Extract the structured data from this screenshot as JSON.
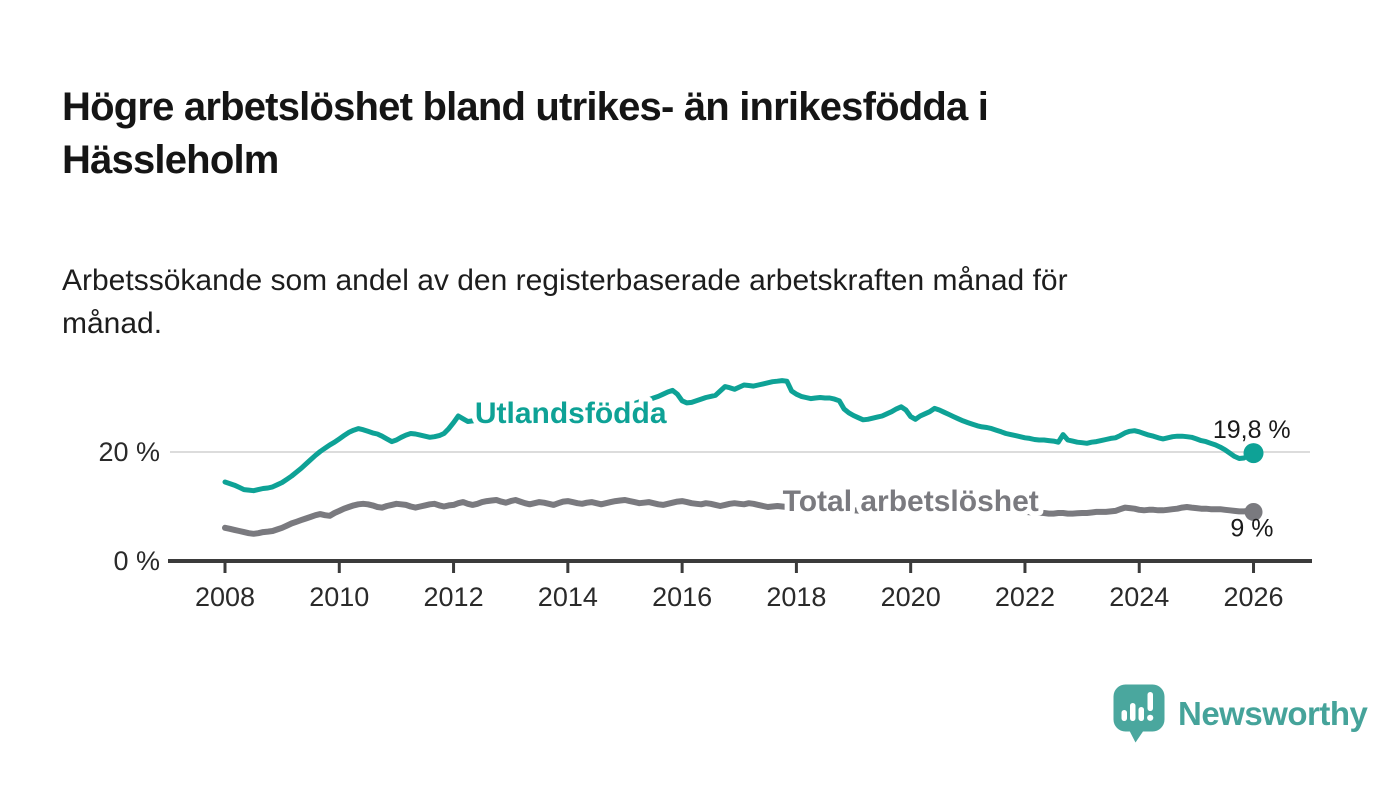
{
  "header": {
    "title": "Högre arbetslöshet bland utrikes- än inrikesfödda i\nHässleholm",
    "subtitle": "Arbetssökande som andel av den registerbaserade arbetskraften månad för\nmånad."
  },
  "branding": {
    "name": "Newsworthy",
    "icon": "newsworthy-speech-bubble-bar-chart-icon",
    "color": "#4aa79e",
    "text_color": "#45a39a"
  },
  "chart_data": {
    "type": "line",
    "title": "Högre arbetslöshet bland utrikes- än inrikesfödda i Hässleholm",
    "subtitle": "Arbetssökande som andel av den registerbaserade arbetskraften månad för månad.",
    "unit": "%",
    "frequency": "monthly",
    "x_range": [
      2007.05,
      2027.0
    ],
    "y_range": [
      0,
      36
    ],
    "grid": "single horizontal gridline at 20 %",
    "legend_position": "inline labels on lines",
    "x_ticks": [
      {
        "year": 2008,
        "label": "2008"
      },
      {
        "year": 2010,
        "label": "2010"
      },
      {
        "year": 2012,
        "label": "2012"
      },
      {
        "year": 2014,
        "label": "2014"
      },
      {
        "year": 2016,
        "label": "2016"
      },
      {
        "year": 2018,
        "label": "2018"
      },
      {
        "year": 2020,
        "label": "2020"
      },
      {
        "year": 2022,
        "label": "2022"
      },
      {
        "year": 2024,
        "label": "2024"
      },
      {
        "year": 2026,
        "label": "2026"
      }
    ],
    "y_ticks": [
      {
        "value": 0,
        "label": "0 %",
        "gridline": false
      },
      {
        "value": 20,
        "label": "20 %",
        "gridline": true
      }
    ],
    "series": [
      {
        "name": "Utlandsfödda",
        "color": "#0ea296",
        "line_width": 5,
        "dot_radius": 10,
        "start_year": 2008.0,
        "label": {
          "text": "Utlandsfödda",
          "x": 2014.05,
          "y": 25.3
        },
        "end_label": {
          "text": "19,8 %",
          "x": 2026.65,
          "y": 22.6
        },
        "last_value": 19.8,
        "values": [
          14.5,
          14.2,
          13.9,
          13.5,
          13.1,
          13.0,
          12.9,
          13.1,
          13.3,
          13.4,
          13.6,
          14.0,
          14.4,
          15.0,
          15.6,
          16.3,
          17.0,
          17.8,
          18.6,
          19.4,
          20.1,
          20.7,
          21.3,
          21.8,
          22.4,
          23.0,
          23.6,
          24.0,
          24.3,
          24.1,
          23.8,
          23.5,
          23.3,
          22.9,
          22.4,
          21.9,
          22.2,
          22.7,
          23.1,
          23.4,
          23.3,
          23.1,
          22.9,
          22.7,
          22.8,
          23.0,
          23.4,
          24.3,
          25.4,
          26.6,
          26.1,
          25.6,
          25.7,
          25.8,
          26.0,
          25.9,
          25.7,
          25.8,
          26.0,
          26.2,
          26.3,
          26.4,
          26.2,
          26.3,
          26.5,
          26.6,
          26.9,
          27.0,
          26.9,
          26.8,
          27.0,
          27.2,
          27.4,
          27.5,
          27.4,
          27.3,
          27.5,
          27.6,
          27.7,
          27.8,
          28.0,
          28.2,
          28.1,
          28.0,
          28.3,
          28.6,
          28.9,
          29.2,
          29.4,
          29.6,
          29.9,
          30.2,
          30.6,
          31.0,
          31.3,
          30.6,
          29.4,
          29.0,
          29.1,
          29.4,
          29.7,
          30.0,
          30.2,
          30.4,
          31.2,
          32.0,
          31.8,
          31.5,
          31.9,
          32.3,
          32.2,
          32.1,
          32.3,
          32.5,
          32.7,
          32.9,
          33.0,
          33.1,
          33.0,
          31.2,
          30.6,
          30.2,
          30.0,
          29.8,
          29.9,
          30.0,
          29.9,
          29.9,
          29.7,
          29.4,
          27.9,
          27.2,
          26.7,
          26.3,
          25.9,
          26.0,
          26.2,
          26.4,
          26.6,
          27.0,
          27.4,
          27.9,
          28.3,
          27.7,
          26.5,
          26.0,
          26.6,
          27.0,
          27.4,
          28.0,
          27.7,
          27.3,
          26.9,
          26.5,
          26.1,
          25.7,
          25.4,
          25.1,
          24.8,
          24.6,
          24.5,
          24.3,
          24.0,
          23.7,
          23.4,
          23.2,
          23.0,
          22.8,
          22.6,
          22.5,
          22.3,
          22.2,
          22.2,
          22.1,
          22.0,
          21.8,
          23.2,
          22.2,
          22.0,
          21.8,
          21.7,
          21.6,
          21.8,
          21.9,
          22.1,
          22.3,
          22.5,
          22.6,
          23.0,
          23.5,
          23.8,
          23.9,
          23.7,
          23.4,
          23.1,
          22.9,
          22.6,
          22.4,
          22.6,
          22.8,
          22.9,
          22.9,
          22.8,
          22.7,
          22.4,
          22.1,
          21.9,
          21.6,
          21.3,
          20.9,
          20.4,
          19.8,
          19.2,
          18.8,
          18.9,
          19.4,
          19.8
        ]
      },
      {
        "name": "Total arbetslöshet",
        "color": "#7a7a7f",
        "line_width": 6,
        "dot_radius": 9,
        "start_year": 2008.0,
        "label": {
          "text": "Total arbetslöshet",
          "x": 2020.0,
          "y": 9.2
        },
        "end_label": {
          "text": "9 %",
          "x": 2026.35,
          "y": 4.5
        },
        "last_value": 9.0,
        "values": [
          6.1,
          5.9,
          5.7,
          5.5,
          5.3,
          5.1,
          5.0,
          5.1,
          5.3,
          5.4,
          5.5,
          5.8,
          6.1,
          6.5,
          6.9,
          7.2,
          7.5,
          7.8,
          8.1,
          8.4,
          8.6,
          8.4,
          8.3,
          8.8,
          9.2,
          9.6,
          9.9,
          10.2,
          10.4,
          10.5,
          10.4,
          10.2,
          9.9,
          9.8,
          10.1,
          10.3,
          10.5,
          10.4,
          10.3,
          10.0,
          9.8,
          10.0,
          10.2,
          10.4,
          10.5,
          10.2,
          10.0,
          10.2,
          10.3,
          10.6,
          10.8,
          10.5,
          10.3,
          10.5,
          10.8,
          11.0,
          11.1,
          11.2,
          10.9,
          10.7,
          11.0,
          11.2,
          10.9,
          10.6,
          10.4,
          10.6,
          10.8,
          10.7,
          10.5,
          10.3,
          10.6,
          10.9,
          11.0,
          10.8,
          10.6,
          10.5,
          10.7,
          10.8,
          10.6,
          10.4,
          10.6,
          10.8,
          11.0,
          11.1,
          11.2,
          11.0,
          10.8,
          10.6,
          10.7,
          10.8,
          10.6,
          10.4,
          10.3,
          10.5,
          10.7,
          10.9,
          11.0,
          10.8,
          10.6,
          10.5,
          10.4,
          10.6,
          10.5,
          10.3,
          10.1,
          10.3,
          10.5,
          10.6,
          10.5,
          10.4,
          10.6,
          10.5,
          10.3,
          10.1,
          9.9,
          10.0,
          10.1,
          10.0,
          9.9,
          9.8,
          9.8,
          9.75,
          9.7,
          9.65,
          9.6,
          9.6,
          9.6,
          9.55,
          9.5,
          9.45,
          9.4,
          9.35,
          9.3,
          9.25,
          9.2,
          9.25,
          9.3,
          9.35,
          9.4,
          9.45,
          9.5,
          9.55,
          9.6,
          9.7,
          9.8,
          10.1,
          10.3,
          10.5,
          10.7,
          10.8,
          10.8,
          10.7,
          10.6,
          10.5,
          10.4,
          10.2,
          10.1,
          10.0,
          9.9,
          9.8,
          9.7,
          9.6,
          9.5,
          9.4,
          9.3,
          9.2,
          9.1,
          9.05,
          9.0,
          8.95,
          8.9,
          8.85,
          8.8,
          8.7,
          8.7,
          8.8,
          8.8,
          8.7,
          8.7,
          8.75,
          8.8,
          8.8,
          8.9,
          9.0,
          9.0,
          9.0,
          9.1,
          9.2,
          9.5,
          9.8,
          9.7,
          9.6,
          9.4,
          9.3,
          9.4,
          9.4,
          9.3,
          9.3,
          9.4,
          9.5,
          9.6,
          9.8,
          9.9,
          9.8,
          9.7,
          9.6,
          9.6,
          9.5,
          9.5,
          9.5,
          9.4,
          9.3,
          9.2,
          9.1,
          9.1,
          9.2,
          9.0
        ]
      }
    ]
  }
}
